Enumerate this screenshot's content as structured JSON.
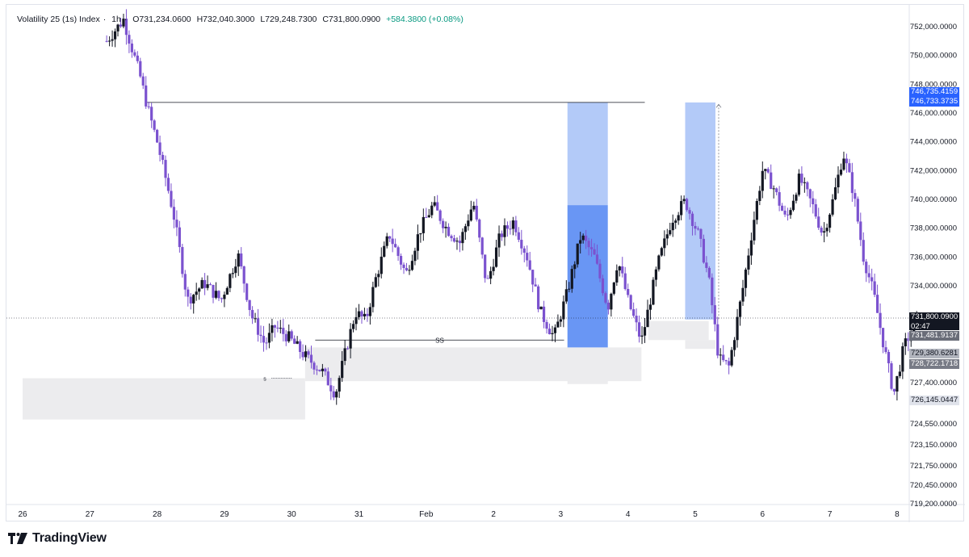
{
  "legend": {
    "symbol": "Volatility 25 (1s) Index",
    "interval": "1h",
    "open": "O731,234.0600",
    "high": "H732,040.3000",
    "low": "L729,248.7300",
    "close": "C731,800.0900",
    "change": "+584.3800 (+0.08%)"
  },
  "brand": {
    "name": "TradingView"
  },
  "colors": {
    "bull": "#131722",
    "bear": "#7b52cf",
    "zone_blue_light": "#a6c1f7",
    "zone_blue_dark": "#4f84f2",
    "zone_gray": "#ececee",
    "accent": "#2962ff"
  },
  "price_tags": [
    {
      "text": "746,735.4159",
      "bg": "#2962ff",
      "fg": "#ffffff",
      "price": 746735.4159
    },
    {
      "text": "746,733.3735",
      "bg": "#2962ff",
      "fg": "#ffffff",
      "price": 746733.3735
    },
    {
      "text": "731,800.0900",
      "bg": "#131722",
      "fg": "#ffffff",
      "price": 731800.09,
      "sub": "02:47"
    },
    {
      "text": "731,481.9137",
      "bg": "#6a6d78",
      "fg": "#ffffff",
      "price": 731481.9137
    },
    {
      "text": "729,380.6281",
      "bg": "#b2b5be",
      "fg": "#131722",
      "price": 729380.6281
    },
    {
      "text": "728,722.1718",
      "bg": "#787b86",
      "fg": "#ffffff",
      "price": 728722.1718
    },
    {
      "text": "726,145.0447",
      "bg": "#e0e3eb",
      "fg": "#131722",
      "price": 726145.0447
    }
  ],
  "annotations": {
    "sellside_label": "SS",
    "small_label": "s"
  },
  "chart_data": {
    "type": "candlestick",
    "title": "Volatility 25 (1s) Index · 1h",
    "xlabel": "",
    "ylabel": "",
    "grid": false,
    "x_ticks": [
      "26",
      "27",
      "28",
      "29",
      "30",
      "31",
      "Feb",
      "2",
      "3",
      "4",
      "5",
      "6",
      "7",
      "8"
    ],
    "y_ticks": [
      "752,000.0000",
      "750,000.0000",
      "748,000.0000",
      "746,000.0000",
      "744,000.0000",
      "742,000.0000",
      "740,000.0000",
      "738,000.0000",
      "736,000.0000",
      "734,000.0000",
      "727,400.0000",
      "724,550.0000",
      "723,150.0000",
      "721,750.0000",
      "720,450.0000",
      "719,200.0000"
    ],
    "y_tick_values": [
      752000,
      750000,
      748000,
      746000,
      744000,
      742000,
      740000,
      738000,
      736000,
      734000,
      727400,
      724550,
      723150,
      721750,
      720450,
      719200
    ],
    "x_range_days": [
      26,
      39
    ],
    "last_price": 731800.09,
    "price_path": [
      {
        "t": 27.25,
        "p": 751000
      },
      {
        "t": 27.5,
        "p": 752500
      },
      {
        "t": 27.75,
        "p": 748500
      },
      {
        "t": 27.85,
        "p": 746500
      },
      {
        "t": 28.0,
        "p": 744000
      },
      {
        "t": 28.15,
        "p": 741000
      },
      {
        "t": 28.25,
        "p": 738800
      },
      {
        "t": 28.35,
        "p": 736000
      },
      {
        "t": 28.45,
        "p": 733000
      },
      {
        "t": 28.7,
        "p": 734200
      },
      {
        "t": 28.95,
        "p": 733000
      },
      {
        "t": 29.2,
        "p": 736200
      },
      {
        "t": 29.4,
        "p": 732000
      },
      {
        "t": 29.6,
        "p": 730000
      },
      {
        "t": 29.75,
        "p": 731200
      },
      {
        "t": 29.95,
        "p": 730500
      },
      {
        "t": 30.2,
        "p": 729200
      },
      {
        "t": 30.45,
        "p": 728200
      },
      {
        "t": 30.65,
        "p": 726600
      },
      {
        "t": 30.8,
        "p": 729500
      },
      {
        "t": 30.95,
        "p": 732200
      },
      {
        "t": 31.1,
        "p": 731600
      },
      {
        "t": 31.25,
        "p": 734500
      },
      {
        "t": 31.45,
        "p": 737600
      },
      {
        "t": 31.7,
        "p": 734800
      },
      {
        "t": 31.9,
        "p": 737800
      },
      {
        "t": 32.1,
        "p": 739600
      },
      {
        "t": 32.3,
        "p": 738000
      },
      {
        "t": 32.5,
        "p": 737000
      },
      {
        "t": 32.7,
        "p": 739800
      },
      {
        "t": 32.9,
        "p": 734000
      },
      {
        "t": 33.1,
        "p": 737500
      },
      {
        "t": 33.3,
        "p": 738500
      },
      {
        "t": 33.5,
        "p": 736000
      },
      {
        "t": 33.7,
        "p": 732200
      },
      {
        "t": 33.9,
        "p": 730500
      },
      {
        "t": 34.1,
        "p": 733600
      },
      {
        "t": 34.3,
        "p": 737500
      },
      {
        "t": 34.5,
        "p": 736000
      },
      {
        "t": 34.7,
        "p": 732500
      },
      {
        "t": 34.85,
        "p": 735800
      },
      {
        "t": 35.0,
        "p": 733000
      },
      {
        "t": 35.2,
        "p": 730200
      },
      {
        "t": 35.45,
        "p": 735600
      },
      {
        "t": 35.65,
        "p": 738600
      },
      {
        "t": 35.85,
        "p": 739900
      },
      {
        "t": 36.05,
        "p": 737500
      },
      {
        "t": 36.2,
        "p": 734500
      },
      {
        "t": 36.35,
        "p": 729000
      },
      {
        "t": 36.5,
        "p": 728500
      },
      {
        "t": 36.7,
        "p": 733600
      },
      {
        "t": 36.85,
        "p": 738000
      },
      {
        "t": 37.0,
        "p": 742000
      },
      {
        "t": 37.15,
        "p": 741000
      },
      {
        "t": 37.35,
        "p": 738500
      },
      {
        "t": 37.55,
        "p": 741500
      },
      {
        "t": 37.75,
        "p": 739500
      },
      {
        "t": 37.9,
        "p": 737500
      },
      {
        "t": 38.05,
        "p": 740000
      },
      {
        "t": 38.2,
        "p": 743200
      },
      {
        "t": 38.35,
        "p": 740500
      },
      {
        "t": 38.5,
        "p": 736000
      },
      {
        "t": 38.65,
        "p": 733500
      },
      {
        "t": 38.8,
        "p": 730000
      },
      {
        "t": 38.95,
        "p": 726600
      },
      {
        "t": 39.1,
        "p": 729800
      },
      {
        "t": 39.3,
        "p": 731800
      }
    ],
    "zones": [
      {
        "name": "demand-zone-left",
        "t0": 26.0,
        "t1": 30.2,
        "p0": 724850,
        "p1": 727700,
        "color": "#ececee"
      },
      {
        "name": "demand-zone-mid",
        "t0": 30.2,
        "t1": 35.2,
        "p0": 727500,
        "p1": 729800,
        "color": "#ececee"
      },
      {
        "name": "zone-gray-under-blue",
        "t0": 34.1,
        "t1": 34.7,
        "p0": 727300,
        "p1": 729700,
        "color": "#ececee"
      },
      {
        "name": "zone-gray-right",
        "t0": 35.3,
        "t1": 36.2,
        "p0": 730300,
        "p1": 731600,
        "color": "#ececee"
      },
      {
        "name": "zone-gray-right-small",
        "t0": 35.85,
        "t1": 36.3,
        "p0": 729700,
        "p1": 730300,
        "color": "#ececee"
      },
      {
        "name": "blue-zone-left-upper",
        "t0": 34.1,
        "t1": 34.7,
        "p0": 739600,
        "p1": 746735,
        "color": "#a6c1f7"
      },
      {
        "name": "blue-zone-left-lower",
        "t0": 34.1,
        "t1": 34.7,
        "p0": 729800,
        "p1": 739600,
        "color": "#4f84f2"
      },
      {
        "name": "blue-zone-right",
        "t0": 35.85,
        "t1": 36.3,
        "p0": 731700,
        "p1": 746733,
        "color": "#a6c1f7"
      }
    ],
    "lines": [
      {
        "name": "swing-high-line",
        "t0": 27.85,
        "t1": 35.25,
        "p": 746735
      },
      {
        "name": "sellside-line",
        "t0": 30.35,
        "t1": 34.05,
        "p": 730300
      }
    ]
  }
}
